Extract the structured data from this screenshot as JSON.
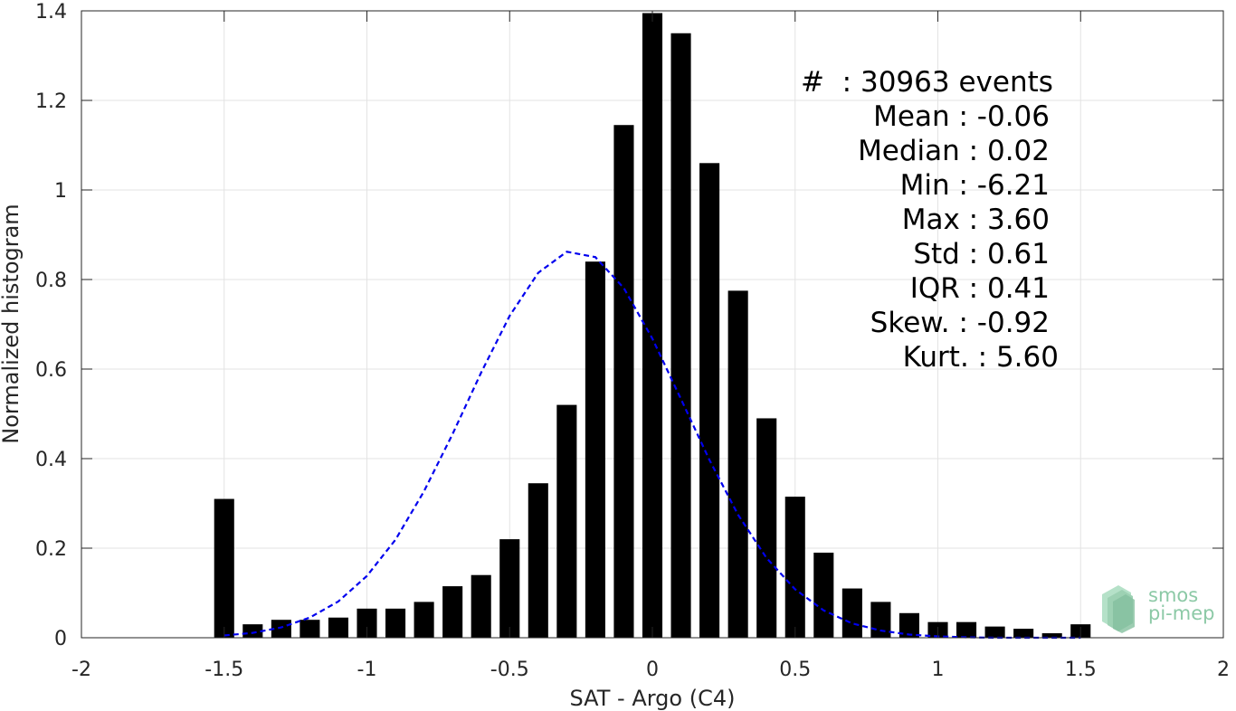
{
  "chart_data": {
    "type": "bar",
    "xlabel": "SAT - Argo (C4)",
    "ylabel": "Normalized histogram",
    "xlim": [
      -2,
      2
    ],
    "ylim": [
      0,
      1.4
    ],
    "xticks": [
      -2,
      -1.5,
      -1,
      -0.5,
      0,
      0.5,
      1,
      1.5,
      2
    ],
    "xtick_labels": [
      "-2",
      "-1.5",
      "-1",
      "-0.5",
      "0",
      "0.5",
      "1",
      "1.5",
      "2"
    ],
    "yticks": [
      0,
      0.2,
      0.4,
      0.6,
      0.8,
      1.0,
      1.2,
      1.4
    ],
    "ytick_labels": [
      "0",
      "0.2",
      "0.4",
      "0.6",
      "0.8",
      "1",
      "1.2",
      "1.4"
    ],
    "grid": true,
    "bar_width": 0.07,
    "series": [
      {
        "type": "bar",
        "color": "#000000",
        "x": [
          -1.5,
          -1.4,
          -1.3,
          -1.2,
          -1.1,
          -1.0,
          -0.9,
          -0.8,
          -0.7,
          -0.6,
          -0.5,
          -0.4,
          -0.3,
          -0.2,
          -0.1,
          0.0,
          0.1,
          0.2,
          0.3,
          0.4,
          0.5,
          0.6,
          0.7,
          0.8,
          0.9,
          1.0,
          1.1,
          1.2,
          1.3,
          1.4,
          1.5
        ],
        "values": [
          0.31,
          0.03,
          0.04,
          0.04,
          0.045,
          0.065,
          0.065,
          0.08,
          0.115,
          0.14,
          0.22,
          0.345,
          0.52,
          0.84,
          1.145,
          1.395,
          1.35,
          1.06,
          0.775,
          0.49,
          0.315,
          0.19,
          0.11,
          0.08,
          0.055,
          0.035,
          0.035,
          0.025,
          0.02,
          0.01,
          0.03
        ]
      },
      {
        "type": "line",
        "style": "dashed",
        "color": "#0000ee",
        "x": [
          -1.5,
          -1.4,
          -1.3,
          -1.2,
          -1.1,
          -1.0,
          -0.9,
          -0.8,
          -0.7,
          -0.6,
          -0.5,
          -0.4,
          -0.3,
          -0.2,
          -0.1,
          0.0,
          0.1,
          0.2,
          0.3,
          0.4,
          0.5,
          0.6,
          0.7,
          0.8,
          0.9,
          1.0,
          1.1,
          1.2,
          1.3,
          1.4,
          1.5
        ],
        "values": [
          0.005,
          0.011,
          0.023,
          0.045,
          0.081,
          0.138,
          0.219,
          0.327,
          0.455,
          0.592,
          0.719,
          0.815,
          0.862,
          0.85,
          0.781,
          0.668,
          0.533,
          0.397,
          0.275,
          0.178,
          0.108,
          0.061,
          0.032,
          0.016,
          0.007,
          0.003,
          0.001,
          0.0,
          0.0,
          0.0,
          0.0
        ]
      }
    ]
  },
  "stats": [
    "#  : 30963 events",
    "Mean : -0.06",
    "Median : 0.02",
    "Min : -6.21",
    "Max : 3.60",
    "Std : 0.61",
    "IQR : 0.41",
    "Skew. : -0.92",
    "Kurt. : 5.60"
  ],
  "logo": {
    "line1": "smos",
    "line2": "pi-mep",
    "color": "#8cc9a6"
  }
}
